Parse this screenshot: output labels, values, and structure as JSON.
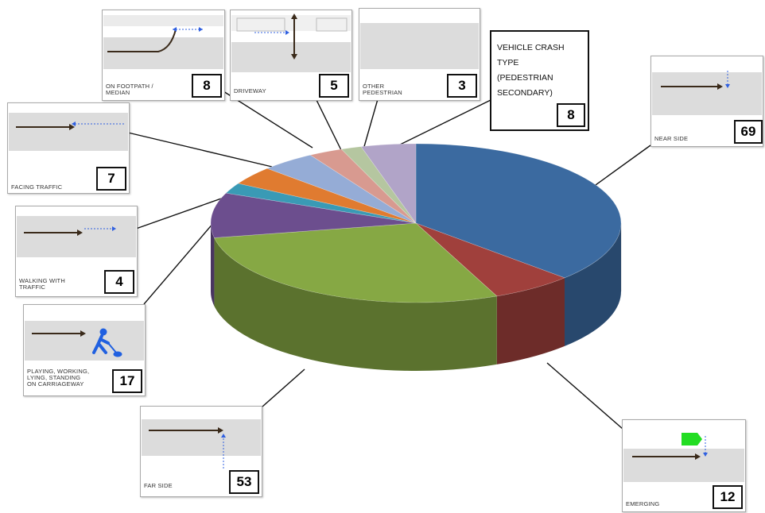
{
  "chart_data": {
    "type": "pie",
    "title": "VEHICLE CRASH\nTYPE\n(PEDESTRIAN\nSECONDARY)",
    "title_count": "8",
    "slices": [
      {
        "label": "NEAR SIDE",
        "value": 69,
        "color": "#3b6aa0"
      },
      {
        "label": "EMERGING",
        "value": 12,
        "color": "#a0403c"
      },
      {
        "label": "FAR SIDE",
        "value": 53,
        "color": "#86a844"
      },
      {
        "label": "PLAYING, WORKING,\nLYING, STANDING\nON CARRIAGEWAY",
        "value": 17,
        "color": "#6c4e8e"
      },
      {
        "label": "WALKING WITH\nTRAFFIC",
        "value": 4,
        "color": "#3a9ab5"
      },
      {
        "label": "FACING TRAFFIC",
        "value": 7,
        "color": "#e07b30"
      },
      {
        "label": "ON FOOTPATH /\nMEDIAN",
        "value": 8,
        "color": "#95acd6"
      },
      {
        "label": "DRIVEWAY",
        "value": 5,
        "color": "#d89a90"
      },
      {
        "label": "OTHER\nPEDESTRIAN",
        "value": 3,
        "color": "#b5c6a0"
      },
      {
        "label": "VEHICLE CRASH\nTYPE\n(PEDESTRIAN\nSECONDARY)",
        "value": 8,
        "color": "#b1a4c8"
      }
    ]
  },
  "cards": {
    "near_side": {
      "label": "NEAR SIDE",
      "count": "69"
    },
    "emerging": {
      "label": "EMERGING",
      "count": "12"
    },
    "far_side": {
      "label": "FAR SIDE",
      "count": "53"
    },
    "playing": {
      "label": "PLAYING, WORKING,\nLYING, STANDING\nON CARRIAGEWAY",
      "count": "17"
    },
    "walking_with": {
      "label": "WALKING WITH\nTRAFFIC",
      "count": "4"
    },
    "facing": {
      "label": "FACING TRAFFIC",
      "count": "7"
    },
    "footpath": {
      "label": "ON FOOTPATH /\nMEDIAN",
      "count": "8"
    },
    "driveway": {
      "label": "DRIVEWAY",
      "count": "5"
    },
    "other": {
      "label": "OTHER\nPEDESTRIAN",
      "count": "3"
    }
  },
  "icons": {
    "vehicle_arrow": "vehicle-path-arrow",
    "pedestrian_arrow": "pedestrian-path-arrow",
    "pedestrian_figure": "pedestrian-digging-icon",
    "vehicle": "vehicle-icon"
  }
}
